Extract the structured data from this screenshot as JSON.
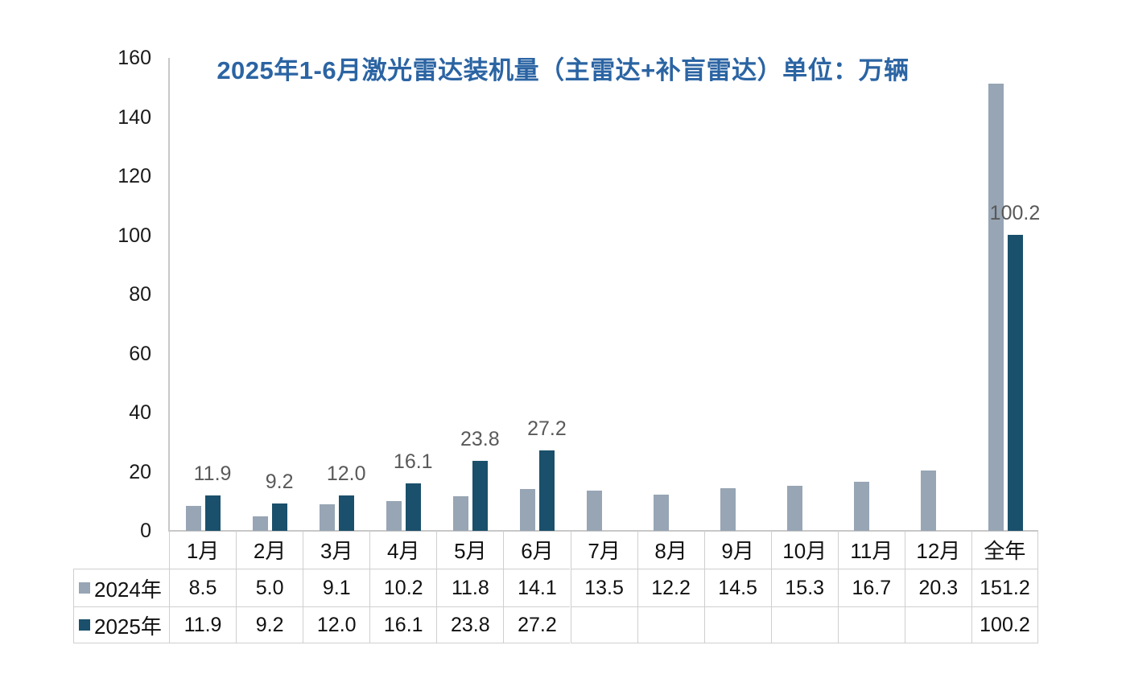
{
  "title": "2025年1-6月激光雷达装机量（主雷达+补盲雷达）单位：万辆",
  "colors": {
    "title": "#2B64A3",
    "series_2024": "#97A5B4",
    "series_2025": "#1A506B",
    "bar_label": "#595959",
    "axis_line": "#c8c8c8",
    "table_border": "#cfcfcf"
  },
  "chart_data": {
    "type": "bar",
    "title": "2025年1-6月激光雷达装机量（主雷达+补盲雷达）单位：万辆",
    "categories": [
      "1月",
      "2月",
      "3月",
      "4月",
      "5月",
      "6月",
      "7月",
      "8月",
      "9月",
      "10月",
      "11月",
      "12月",
      "全年"
    ],
    "series": [
      {
        "name": "2024年",
        "color": "#97A5B4",
        "values": [
          8.5,
          5.0,
          9.1,
          10.2,
          11.8,
          14.1,
          13.5,
          12.2,
          14.5,
          15.3,
          16.7,
          20.3,
          151.2
        ],
        "display": [
          "8.5",
          "5.0",
          "9.1",
          "10.2",
          "11.8",
          "14.1",
          "13.5",
          "12.2",
          "14.5",
          "15.3",
          "16.7",
          "20.3",
          "151.2"
        ]
      },
      {
        "name": "2025年",
        "color": "#1A506B",
        "values": [
          11.9,
          9.2,
          12.0,
          16.1,
          23.8,
          27.2,
          null,
          null,
          null,
          null,
          null,
          null,
          100.2
        ],
        "display": [
          "11.9",
          "9.2",
          "12.0",
          "16.1",
          "23.8",
          "27.2",
          "",
          "",
          "",
          "",
          "",
          "",
          "100.2"
        ]
      }
    ],
    "bar_labels_series": "2025年",
    "bar_labels": [
      "11.9",
      "9.2",
      "12.0",
      "16.1",
      "23.8",
      "27.2",
      "",
      "",
      "",
      "",
      "",
      "",
      "100.2"
    ],
    "xlabel": "",
    "ylabel": "",
    "ylim": [
      0,
      160
    ],
    "ytick_step": 20,
    "y_axis_ticks": [
      "0",
      "20",
      "40",
      "60",
      "80",
      "100",
      "120",
      "140",
      "160"
    ],
    "grid": false,
    "legend_position": "table-row-headers"
  }
}
